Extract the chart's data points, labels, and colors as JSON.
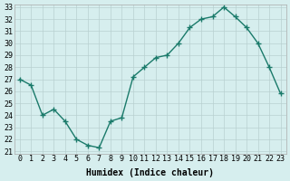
{
  "xlabel": "Humidex (Indice chaleur)",
  "x": [
    0,
    1,
    2,
    3,
    4,
    5,
    6,
    7,
    8,
    9,
    10,
    11,
    12,
    13,
    14,
    15,
    16,
    17,
    18,
    19,
    20,
    21,
    22,
    23
  ],
  "y": [
    27,
    26.5,
    24,
    24.5,
    23.5,
    22,
    21.5,
    21.3,
    23.5,
    23.8,
    27.2,
    28,
    28.8,
    29,
    30,
    31.3,
    32,
    32.2,
    33,
    32.2,
    31.3,
    30,
    28,
    25.8
  ],
  "ylim": [
    21,
    33
  ],
  "xlim": [
    -0.5,
    23.5
  ],
  "yticks": [
    21,
    22,
    23,
    24,
    25,
    26,
    27,
    28,
    29,
    30,
    31,
    32,
    33
  ],
  "xticks": [
    0,
    1,
    2,
    3,
    4,
    5,
    6,
    7,
    8,
    9,
    10,
    11,
    12,
    13,
    14,
    15,
    16,
    17,
    18,
    19,
    20,
    21,
    22,
    23
  ],
  "line_color": "#1a7a6a",
  "marker": "P",
  "bg_color": "#d6eeee",
  "grid_color": "#b8d0d0",
  "label_fontsize": 7,
  "tick_fontsize": 6
}
